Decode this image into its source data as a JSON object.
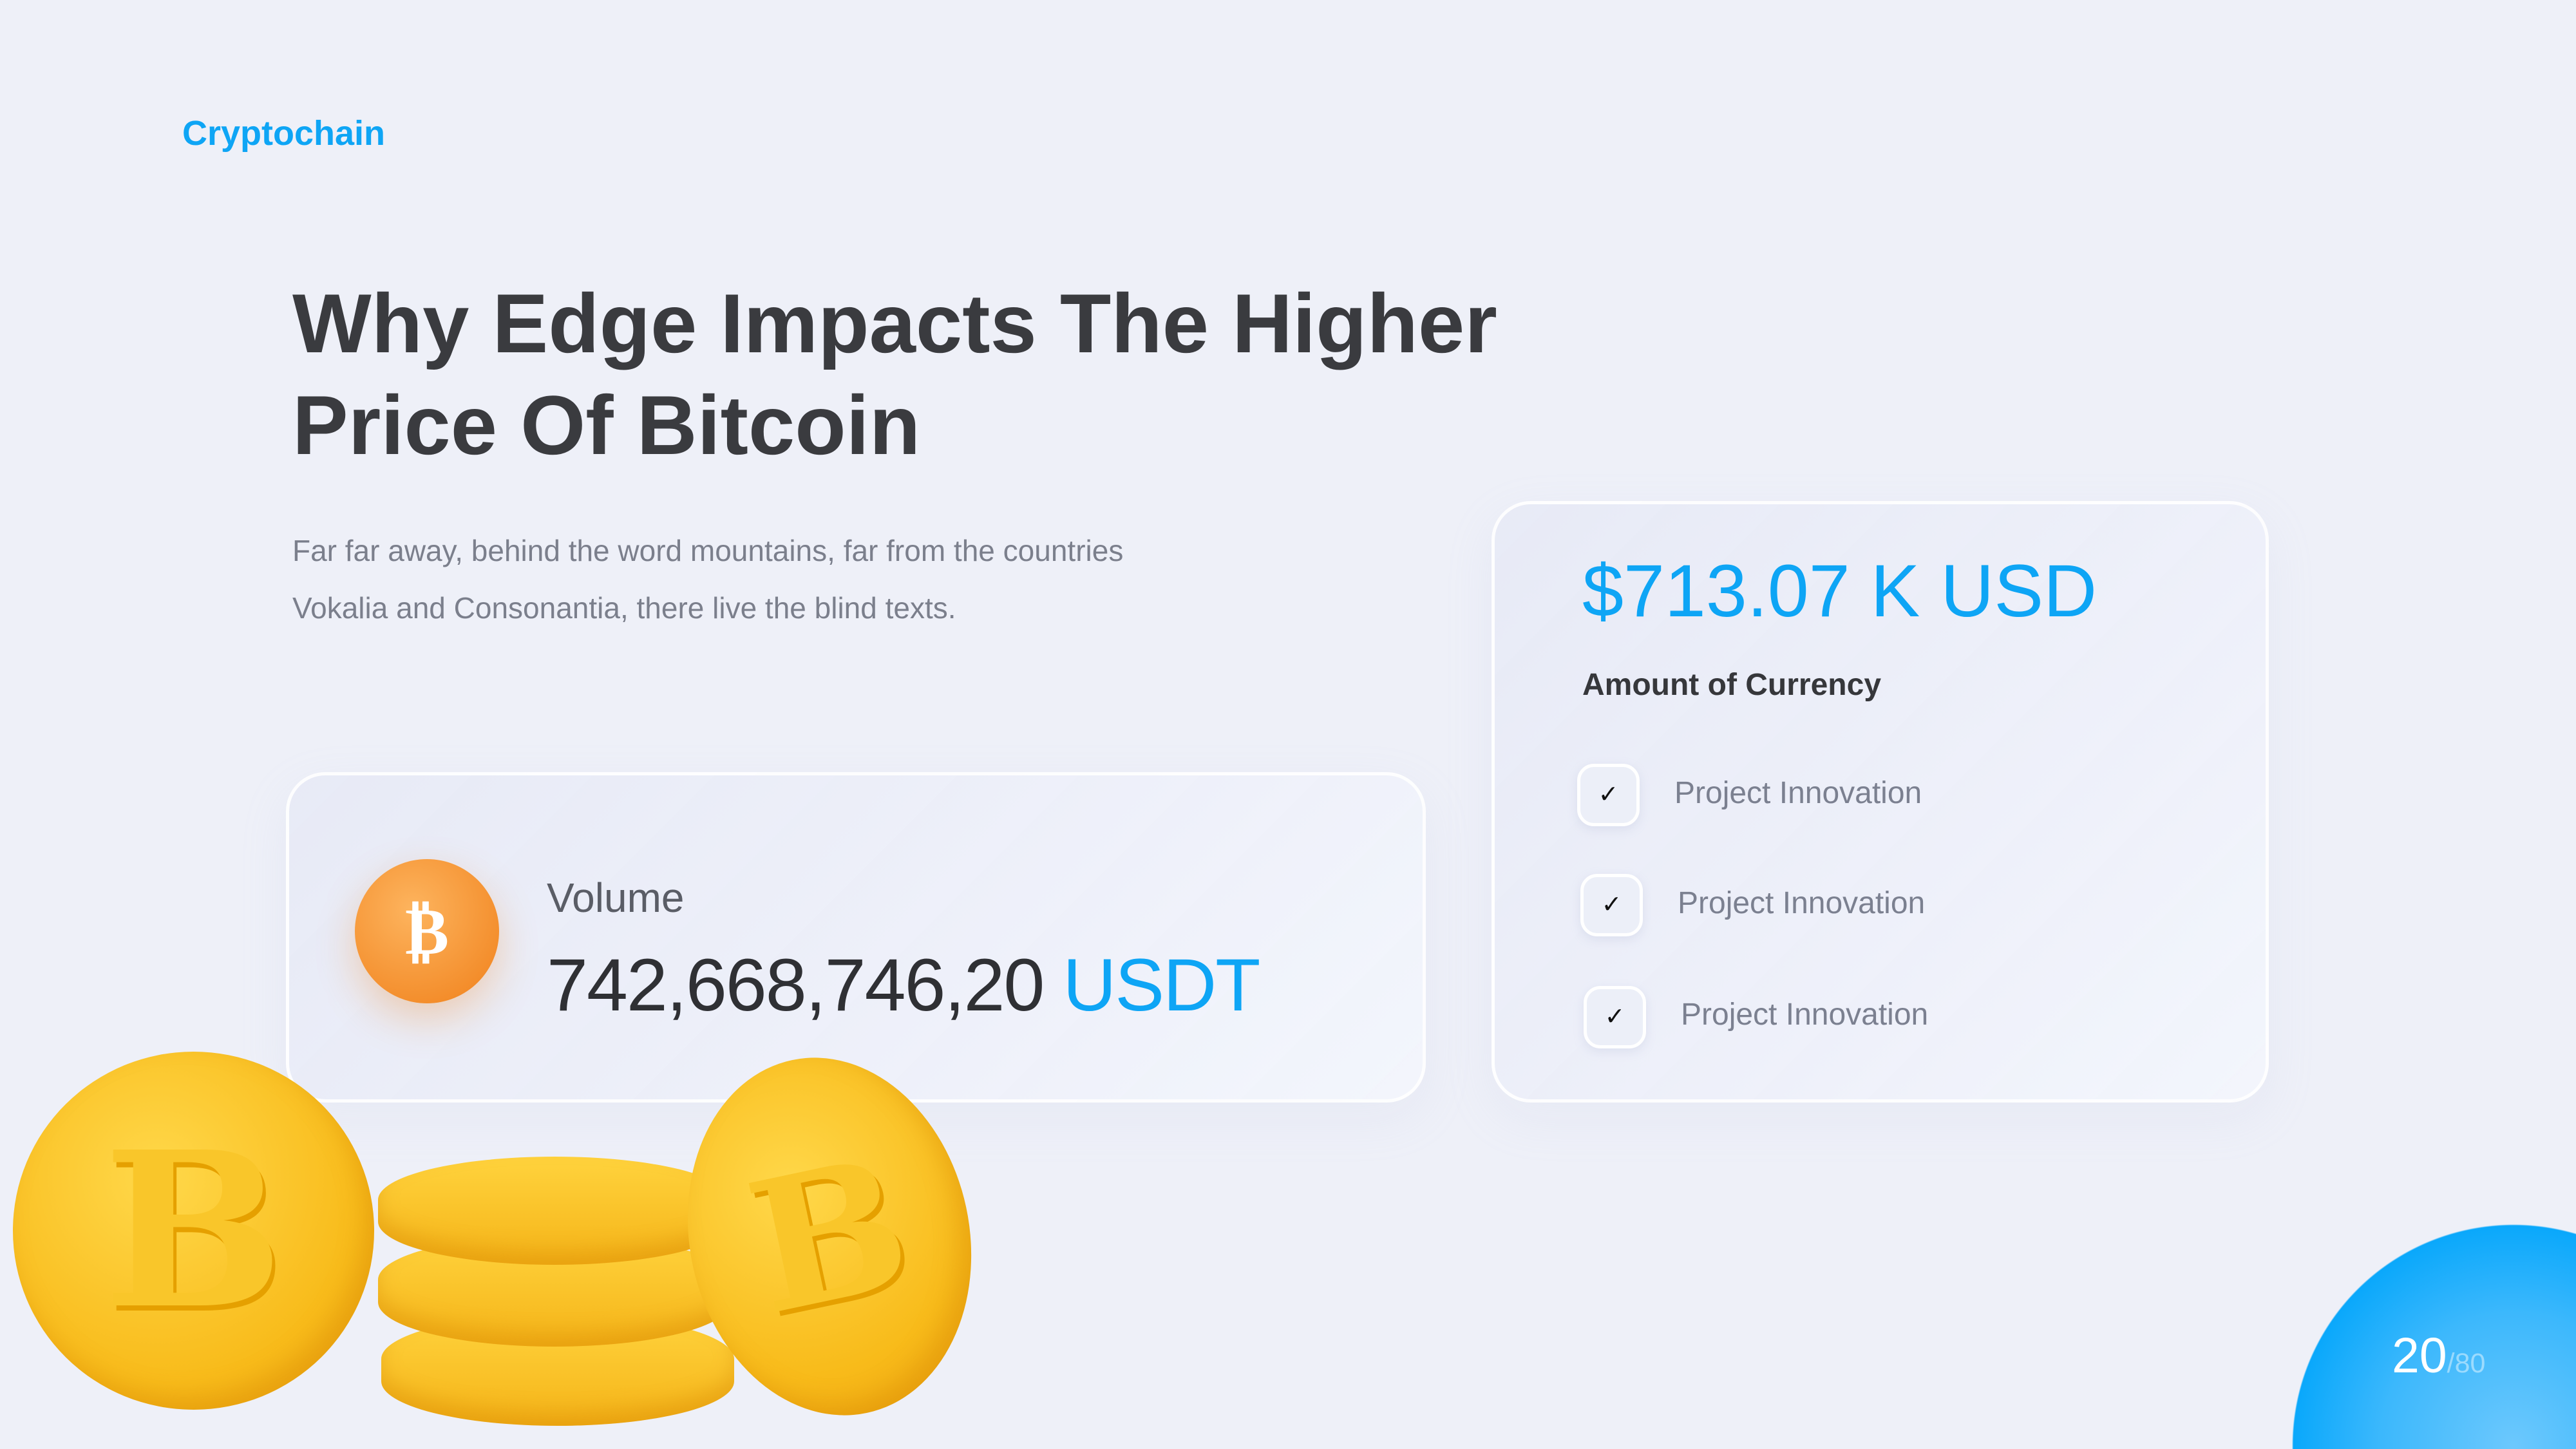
{
  "brand": "Cryptochain",
  "title": {
    "line1": "Why Edge Impacts The Higher",
    "line2": "Price Of Bitcoin"
  },
  "description": {
    "line1": "Far far away, behind the word mountains, far from the countries",
    "line2": "Vokalia and Consonantia, there live the blind texts."
  },
  "volume": {
    "label": "Volume",
    "value": "742,668,746,20",
    "unit": "USDT",
    "icon": "bitcoin-icon",
    "icon_glyph": "₿"
  },
  "currency": {
    "amount": "$713.07 K USD",
    "label": "Amount of Currency",
    "items": [
      {
        "label": "Project Innovation",
        "checked": true
      },
      {
        "label": "Project Innovation",
        "checked": true
      },
      {
        "label": "Project Innovation",
        "checked": true
      }
    ],
    "check_glyph": "✓"
  },
  "coins": {
    "symbol": "B"
  },
  "pagination": {
    "current": "20",
    "total": "/80"
  },
  "colors": {
    "accent": "#0ea5f5",
    "background": "#eef0f8",
    "coin": "#f8bb1a",
    "badge": "#f0801a"
  }
}
